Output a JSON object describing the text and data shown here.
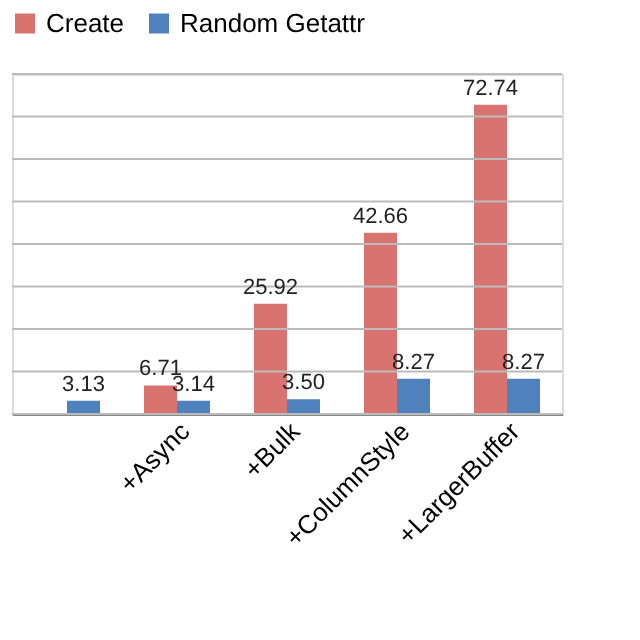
{
  "chart_data": {
    "type": "bar",
    "categories": [
      null,
      "+Async",
      "+Bulk",
      "+ColumnStyle",
      "+LargerBuffer"
    ],
    "series": [
      {
        "name": "Create",
        "color": "#d9736f",
        "values": [
          null,
          6.71,
          25.92,
          42.66,
          72.74
        ],
        "value_labels": [
          null,
          "6.71",
          "25.92",
          "42.66",
          "72.74"
        ]
      },
      {
        "name": "Random Getattr",
        "color": "#4f81bd",
        "values": [
          3.13,
          3.14,
          3.5,
          8.27,
          8.27
        ],
        "value_labels": [
          "3.13",
          "3.14",
          "3.50",
          "8.27",
          "8.27"
        ]
      }
    ],
    "ylim": [
      0,
      80
    ],
    "yticks": [
      {
        "value": 0,
        "label": null
      },
      {
        "value": 10,
        "label": null
      },
      {
        "value": 20,
        "label": null
      },
      {
        "value": 30,
        "label": null
      },
      {
        "value": 40,
        "label": null
      },
      {
        "value": 50,
        "label": null
      },
      {
        "value": 60,
        "label": null
      },
      {
        "value": 70,
        "label": null
      },
      {
        "value": 80,
        "label": null
      }
    ],
    "tick_labels": "x",
    "grid": "y",
    "legend": "top"
  }
}
